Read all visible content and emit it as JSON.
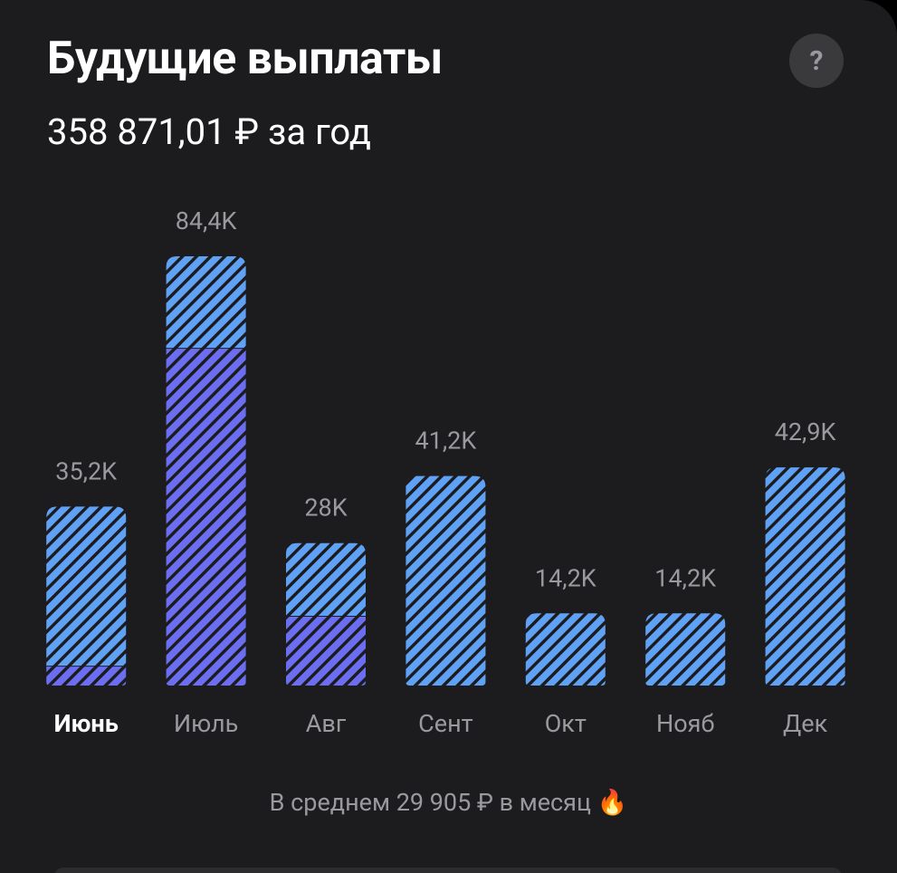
{
  "header": {
    "title": "Будущие выплаты",
    "subtitle": "358 871,01 ₽ за год",
    "help": "?"
  },
  "chart_data": {
    "type": "bar",
    "stacked": true,
    "categories": [
      "Июнь",
      "Июль",
      "Авг",
      "Сент",
      "Окт",
      "Нояб",
      "Дек"
    ],
    "active_category": "Июнь",
    "series": [
      {
        "color": "#6b6ef0",
        "values": [
          3.9,
          66.4,
          13.7,
          0,
          0,
          0,
          0
        ]
      },
      {
        "color": "#5fa2f5",
        "values": [
          31.3,
          18.0,
          14.3,
          41.2,
          14.2,
          14.2,
          42.9
        ]
      }
    ],
    "totals": {
      "values": [
        35.2,
        84.4,
        28,
        41.2,
        14.2,
        14.2,
        42.9
      ],
      "value_labels": [
        "35,2K",
        "84,4K",
        "28K",
        "41,2K",
        "14,2K",
        "14,2K",
        "42,9K"
      ]
    }
  },
  "footer": "В среднем 29 905 ₽ в месяц 🔥"
}
